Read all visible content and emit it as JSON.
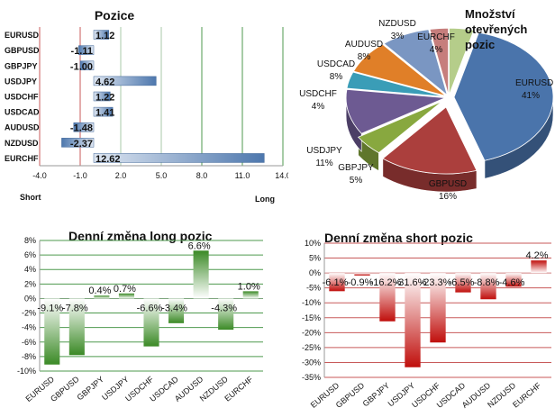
{
  "chart_data": [
    {
      "id": "positions",
      "type": "bar",
      "orientation": "horizontal",
      "title": "Pozice",
      "categories": [
        "EURUSD",
        "GBPUSD",
        "GBPJPY",
        "USDJPY",
        "USDCHF",
        "USDCAD",
        "AUDUSD",
        "NZDUSD",
        "EURCHF"
      ],
      "values": [
        1.12,
        -1.11,
        -1.0,
        4.62,
        1.22,
        1.41,
        -1.48,
        -2.37,
        12.62
      ],
      "value_labels": [
        "1.12",
        "-1.11",
        "-1.00",
        "4.62",
        "1.22",
        "1.41",
        "-1.48",
        "-2.37",
        "12.62"
      ],
      "xlim": [
        -4.0,
        14.0
      ],
      "xticks": [
        "-4.0",
        "-1.0",
        "2.0",
        "5.0",
        "8.0",
        "11.0",
        "14.0"
      ],
      "xtick_values": [
        -4,
        -1,
        2,
        5,
        8,
        11,
        14
      ],
      "left_label": "Short",
      "right_label": "Long",
      "bar_color": "#5d84b6"
    },
    {
      "id": "open-positions-pie",
      "type": "pie",
      "title_lines": [
        "Množství",
        "otevřených",
        "pozic"
      ],
      "slices": [
        {
          "name": "EURUSD",
          "value": 41,
          "label": "41%",
          "color": "#4a74ab"
        },
        {
          "name": "GBPUSD",
          "value": 16,
          "label": "16%",
          "color": "#ab3f3d"
        },
        {
          "name": "GBPJPY",
          "value": 5,
          "label": "5%",
          "color": "#88a83f"
        },
        {
          "name": "USDJPY",
          "value": 11,
          "label": "11%",
          "color": "#6d5a92"
        },
        {
          "name": "USDCHF",
          "value": 4,
          "label": "4%",
          "color": "#3a9db7"
        },
        {
          "name": "USDCAD",
          "value": 8,
          "label": "8%",
          "color": "#e07f28"
        },
        {
          "name": "AUDUSD",
          "value": 8,
          "label": "8%",
          "color": "#7a96c2"
        },
        {
          "name": "NZDUSD",
          "value": 3,
          "label": "3%",
          "color": "#c67e7c"
        },
        {
          "name": "EURCHF",
          "value": 4,
          "label": "4%",
          "color": "#b5cd8a"
        }
      ]
    },
    {
      "id": "daily-long",
      "type": "bar",
      "title": "Denní změna long pozic",
      "categories": [
        "EURUSD",
        "GBPUSD",
        "GBPJPY",
        "USDJPY",
        "USDCHF",
        "USDCAD",
        "AUDUSD",
        "NZDUSD",
        "EURCHF"
      ],
      "values": [
        -9.1,
        -7.8,
        0.4,
        0.7,
        -6.6,
        -3.4,
        6.6,
        -4.3,
        1.0
      ],
      "value_labels": [
        "-9.1%",
        "-7.8%",
        "0.4%",
        "0.7%",
        "-6.6%",
        "-3.4%",
        "6.6%",
        "-4.3%",
        "1.0%"
      ],
      "ylim": [
        -10,
        8
      ],
      "yticks": [
        "-10%",
        "-8%",
        "-6%",
        "-4%",
        "-2%",
        "0%",
        "2%",
        "4%",
        "6%",
        "8%"
      ],
      "ytick_values": [
        -10,
        -8,
        -6,
        -4,
        -2,
        0,
        2,
        4,
        6,
        8
      ],
      "bar_color": "#3f8f2b"
    },
    {
      "id": "daily-short",
      "type": "bar",
      "title": "Denní změna short pozic",
      "categories": [
        "EURUSD",
        "GBPUSD",
        "GBPJPY",
        "USDJPY",
        "USDCHF",
        "USDCAD",
        "AUDUSD",
        "NZDUSD",
        "EURCHF"
      ],
      "values": [
        -6.1,
        -0.9,
        -16.2,
        -31.6,
        -23.3,
        -6.5,
        -8.8,
        -4.6,
        4.2
      ],
      "value_labels": [
        "-6.1%",
        "-0.9%",
        "-16.2%",
        "-31.6%",
        "-23.3%",
        "-6.5%",
        "-8.8%",
        "-4.6%",
        "4.2%"
      ],
      "ylim": [
        -35,
        10
      ],
      "yticks": [
        "-35%",
        "-30%",
        "-25%",
        "-20%",
        "-15%",
        "-10%",
        "-5%",
        "0%",
        "5%",
        "10%"
      ],
      "ytick_values": [
        -35,
        -30,
        -25,
        -20,
        -15,
        -10,
        -5,
        0,
        5,
        10
      ],
      "bar_color": "#c0100c"
    }
  ]
}
